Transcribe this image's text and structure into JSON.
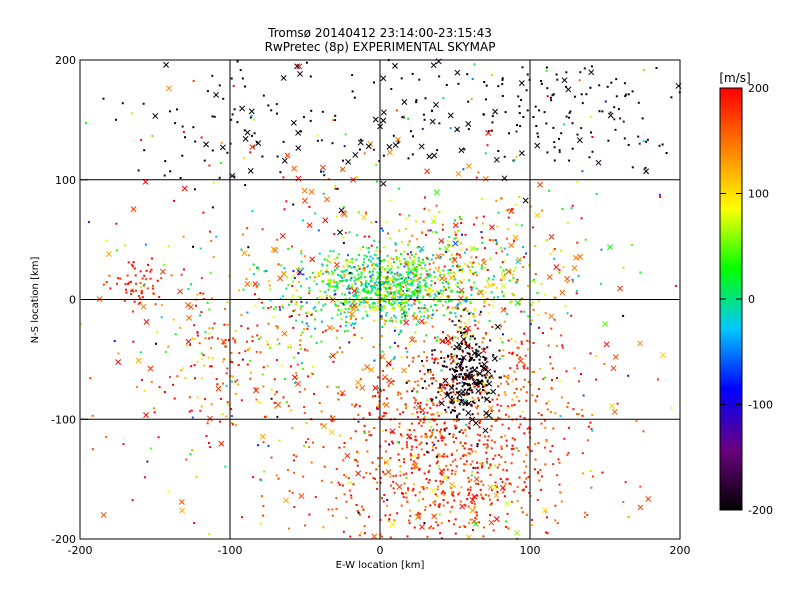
{
  "chart_data": {
    "type": "scatter",
    "title": "Tromsø 20140412 23:14:00-23:15:43",
    "subtitle": "RwPretec (8p) EXPERIMENTAL SKYMAP",
    "xlabel": "E-W location [km]",
    "ylabel": "N-S location [km]",
    "xlim": [
      -200,
      200
    ],
    "ylim": [
      -200,
      200
    ],
    "xticks": [
      "-200",
      "-100",
      "0",
      "100",
      "200"
    ],
    "yticks": [
      "-200",
      "-100",
      "0",
      "100",
      "200"
    ],
    "grid": true,
    "colorbar": {
      "label": "[m/s]",
      "range": [
        -200,
        200
      ],
      "ticks": [
        "200",
        "100",
        "0",
        "-100",
        "-200"
      ],
      "colors": [
        "#000000",
        "#6a0080",
        "#0000ff",
        "#00c8ff",
        "#00ff00",
        "#ffff00",
        "#ff8000",
        "#ff0000"
      ]
    },
    "series": [
      {
        "marker": "dot",
        "clusters": [
          {
            "x": 5,
            "y": 10,
            "sx": 25,
            "sy": 14,
            "n": 600,
            "v": 20,
            "vs": 35
          },
          {
            "x": 0,
            "y": 5,
            "sx": 55,
            "sy": 22,
            "n": 450,
            "v": 60,
            "vs": 60
          },
          {
            "x": 40,
            "y": -140,
            "sx": 45,
            "sy": 40,
            "n": 700,
            "v": 175,
            "vs": 25
          },
          {
            "x": 60,
            "y": -70,
            "sx": 35,
            "sy": 40,
            "n": 350,
            "v": 170,
            "vs": 35
          },
          {
            "x": 60,
            "y": -60,
            "sx": 8,
            "sy": 20,
            "n": 160,
            "v": -195,
            "vs": 5
          },
          {
            "x": 45,
            "y": -80,
            "sx": 10,
            "sy": 20,
            "n": 60,
            "v": -195,
            "vs": 5
          },
          {
            "x": 100,
            "y": 160,
            "sx": 60,
            "sy": 25,
            "n": 150,
            "v": -195,
            "vs": 5
          },
          {
            "x": -80,
            "y": 150,
            "sx": 45,
            "sy": 30,
            "n": 90,
            "v": -195,
            "vs": 5
          },
          {
            "x": -160,
            "y": 10,
            "sx": 10,
            "sy": 12,
            "n": 60,
            "v": 185,
            "vs": 15
          },
          {
            "x": -95,
            "y": -50,
            "sx": 35,
            "sy": 40,
            "n": 220,
            "v": 150,
            "vs": 60
          },
          {
            "x": 60,
            "y": 40,
            "sx": 30,
            "sy": 20,
            "n": 160,
            "v": 120,
            "vs": 90
          },
          {
            "x": 0,
            "y": 0,
            "sx": 110,
            "sy": 110,
            "n": 400,
            "v": 80,
            "vs": 130
          }
        ]
      },
      {
        "marker": "cross",
        "clusters": [
          {
            "x": 0,
            "y": -20,
            "sx": 100,
            "sy": 90,
            "n": 150,
            "v": 170,
            "vs": 30
          },
          {
            "x": 60,
            "y": -65,
            "sx": 10,
            "sy": 20,
            "n": 45,
            "v": -195,
            "vs": 5
          },
          {
            "x": 80,
            "y": 150,
            "sx": 70,
            "sy": 30,
            "n": 35,
            "v": -195,
            "vs": 5
          },
          {
            "x": -60,
            "y": 140,
            "sx": 60,
            "sy": 40,
            "n": 35,
            "v": -195,
            "vs": 5
          },
          {
            "x": 30,
            "y": 30,
            "sx": 70,
            "sy": 30,
            "n": 40,
            "v": 70,
            "vs": 90
          },
          {
            "x": 40,
            "y": -170,
            "sx": 40,
            "sy": 20,
            "n": 30,
            "v": 150,
            "vs": 60
          }
        ]
      }
    ]
  }
}
